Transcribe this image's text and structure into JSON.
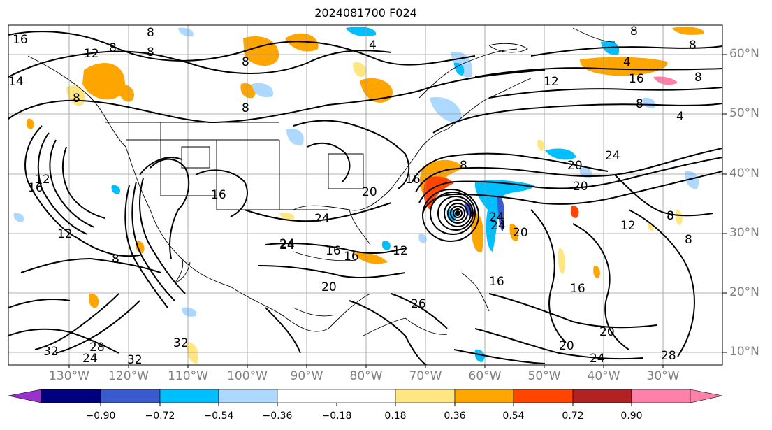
{
  "title": "2024081700 F024",
  "lat_labels": [
    "60°N",
    "50°N",
    "40°N",
    "30°N",
    "20°N",
    "10°N"
  ],
  "lon_labels": [
    "130°W",
    "120°W",
    "110°W",
    "100°W",
    "90°W",
    "80°W",
    "70°W",
    "60°W",
    "50°W",
    "40°W",
    "30°W"
  ],
  "colorbar": {
    "colors": [
      "#9932cc",
      "#000080",
      "#3a5bd0",
      "#00bfff",
      "#add8ff",
      "#ffffff",
      "#ffe680",
      "#ffa500",
      "#ff4500",
      "#b22222",
      "#ff80a8"
    ],
    "tick_labels": [
      "−0.90",
      "−0.72",
      "−0.54",
      "−0.36",
      "−0.18",
      "0.18",
      "0.36",
      "0.54",
      "0.72",
      "0.90"
    ]
  },
  "contour_labels": [
    "16",
    "12",
    "8",
    "8",
    "8",
    "8",
    "8",
    "8",
    "4",
    "8",
    "8",
    "4",
    "16",
    "12",
    "8",
    "8",
    "4",
    "14",
    "24",
    "16",
    "16",
    "20",
    "16",
    "20",
    "24",
    "8",
    "20",
    "12",
    "24",
    "16",
    "12",
    "24",
    "16",
    "20",
    "20",
    "12",
    "8",
    "8",
    "16",
    "16",
    "20",
    "24",
    "28",
    "28",
    "24",
    "32",
    "32",
    "24",
    "32",
    "12",
    "8",
    "24",
    "20",
    "26"
  ]
}
